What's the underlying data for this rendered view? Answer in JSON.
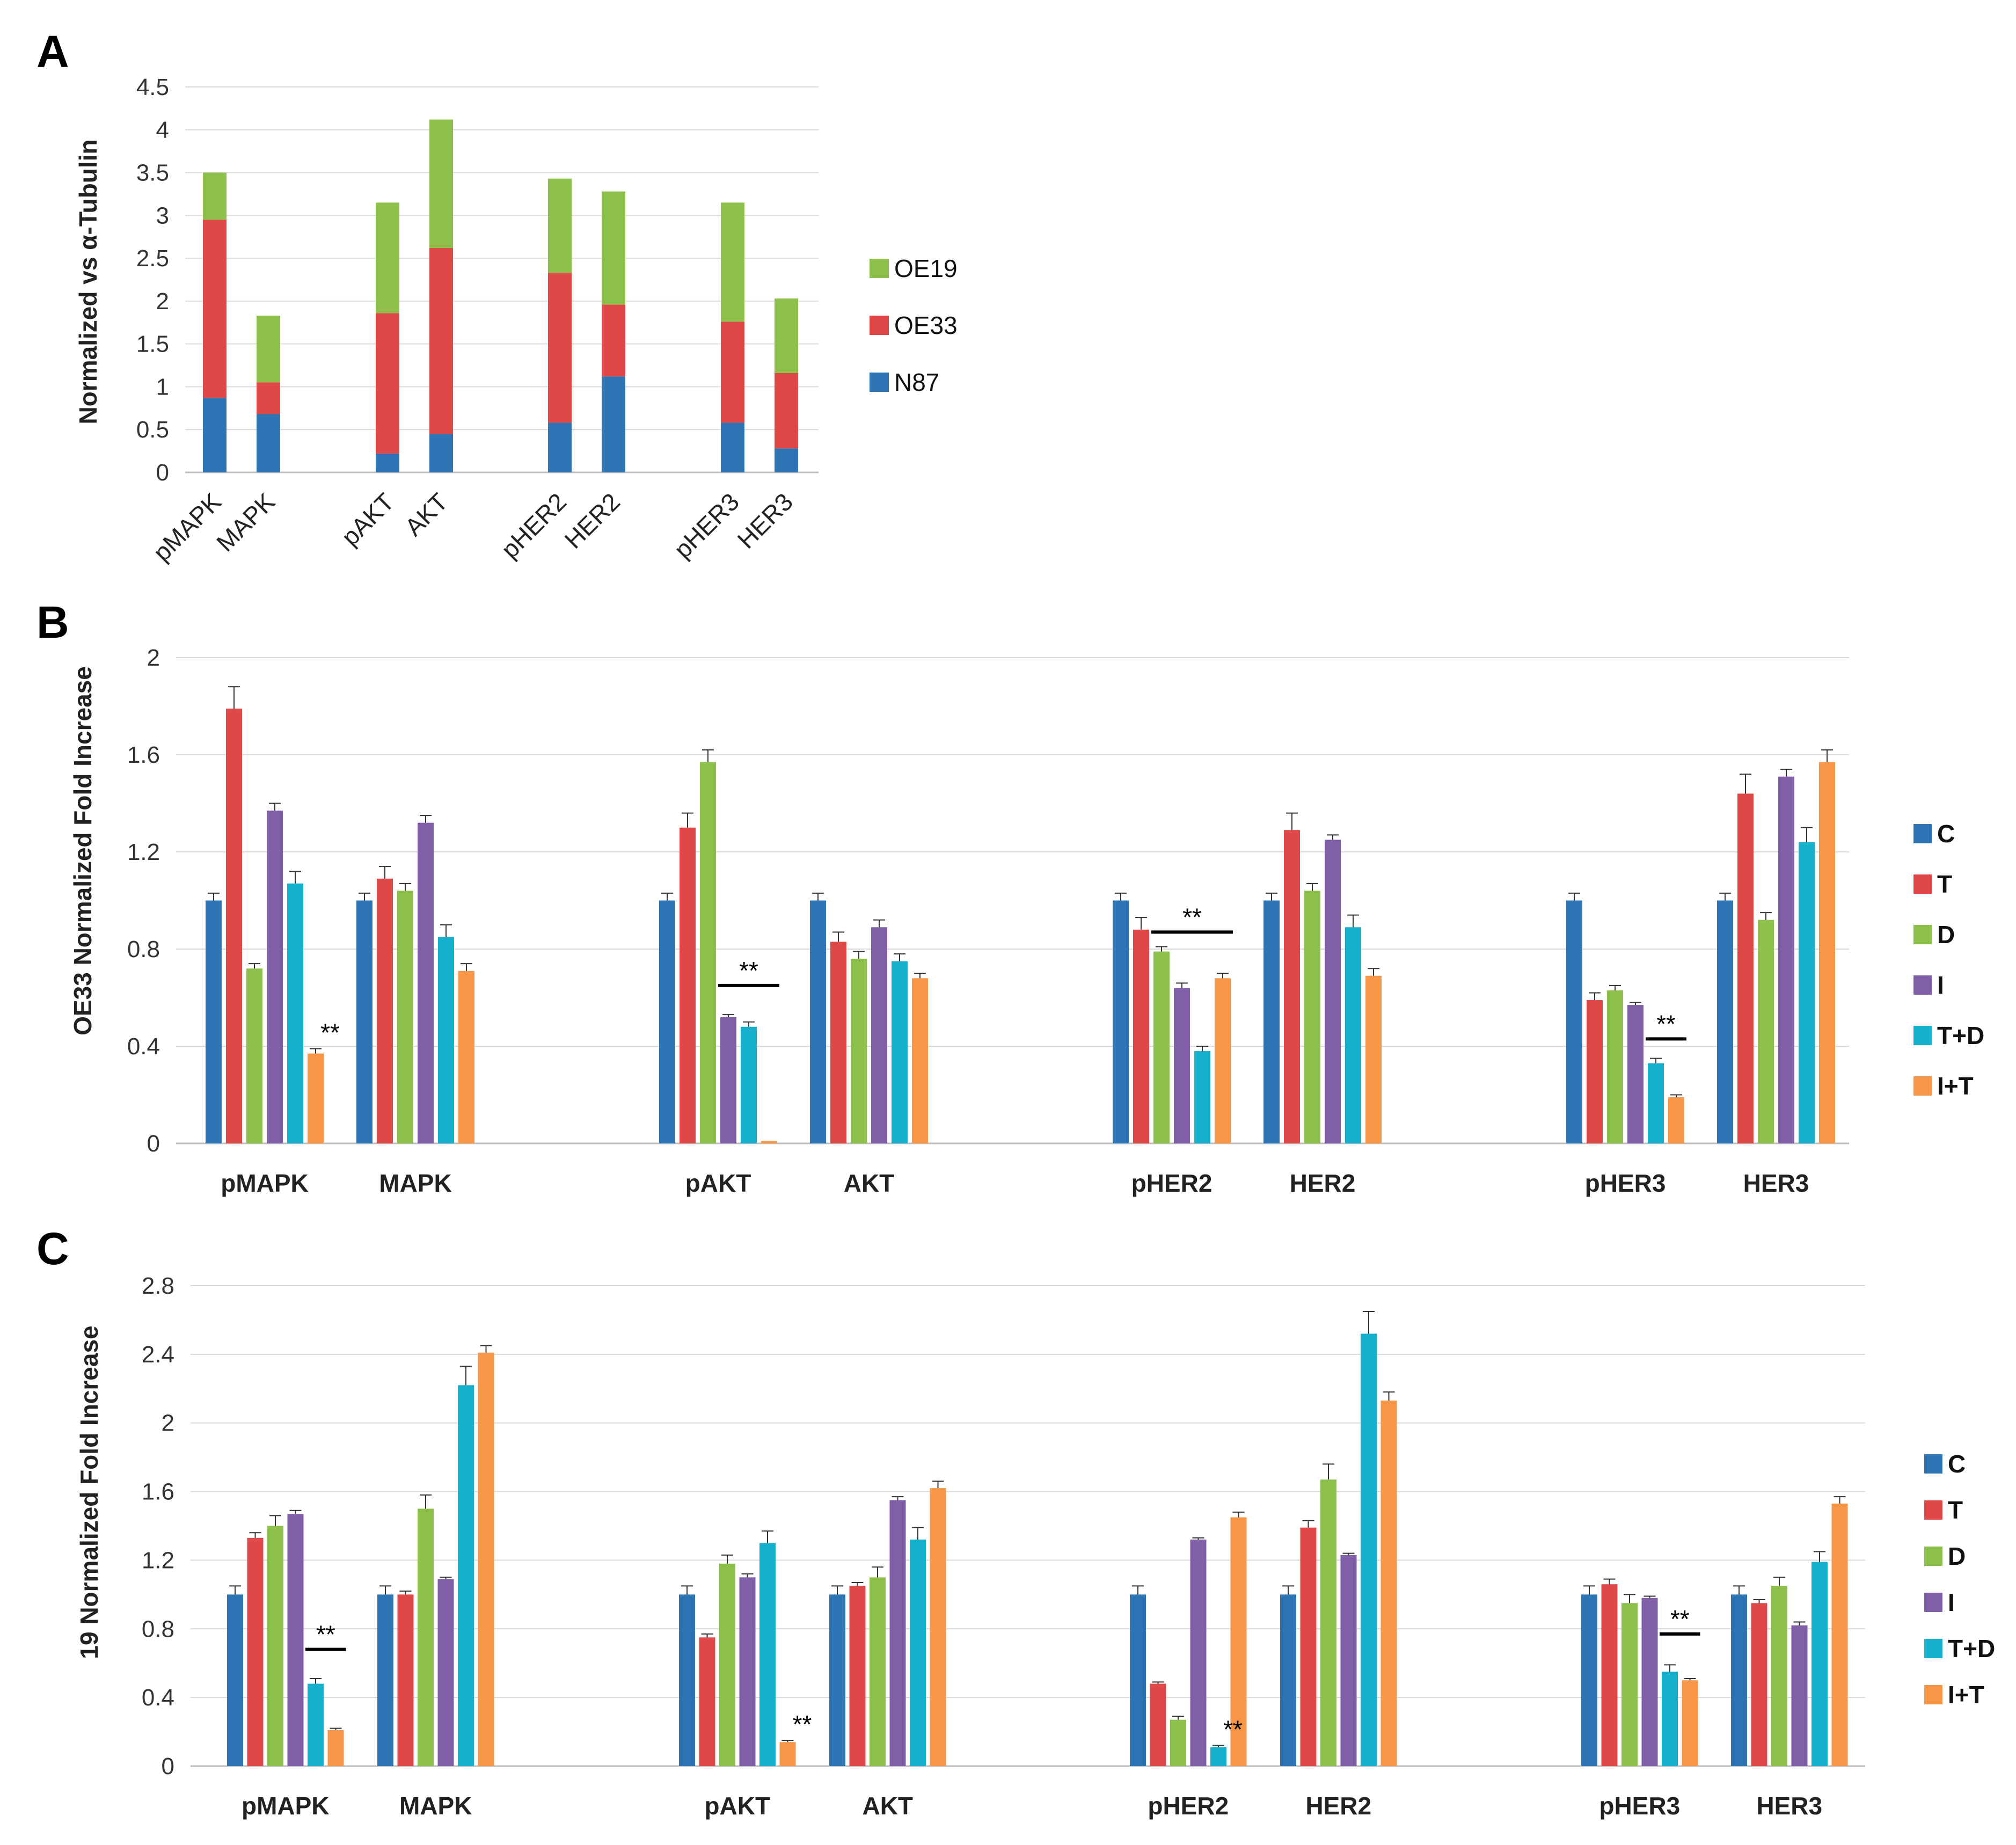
{
  "figure": {
    "colors": {
      "N87": "#2E75B6",
      "OE33": "#E04848",
      "OE19": "#8DC04A",
      "C": "#2E75B6",
      "T": "#E04848",
      "D": "#8DC04A",
      "I": "#7F5FA8",
      "T+D": "#17B0CC",
      "I+T": "#F79646"
    }
  },
  "chart_data": [
    {
      "panel": "A",
      "type": "bar",
      "stacked": true,
      "ylabel": "Normalized vs α-Tubulin",
      "ylim": [
        0,
        4.5
      ],
      "yticks": [
        "0",
        "0.5",
        "1",
        "1.5",
        "2",
        "2.5",
        "3",
        "3.5",
        "4",
        "4.5"
      ],
      "categories": [
        "pMAPK",
        "MAPK",
        "pAKT",
        "AKT",
        "pHER2",
        "HER2",
        "pHER3",
        "HER3"
      ],
      "series": [
        {
          "name": "N87",
          "values": [
            0.87,
            0.68,
            0.22,
            0.45,
            0.58,
            1.12,
            0.58,
            0.28
          ]
        },
        {
          "name": "OE33",
          "values": [
            2.08,
            0.37,
            1.64,
            2.17,
            1.75,
            0.84,
            1.18,
            0.88
          ]
        },
        {
          "name": "OE19",
          "values": [
            0.55,
            0.78,
            1.29,
            1.5,
            1.1,
            1.32,
            1.39,
            0.87
          ]
        }
      ],
      "legend": [
        "OE19",
        "OE33",
        "N87"
      ]
    },
    {
      "panel": "B",
      "type": "bar",
      "ylabel": "OE33 Normalized Fold Increase",
      "ylim": [
        0,
        2
      ],
      "yticks": [
        "0",
        "0.4",
        "0.8",
        "1.2",
        "1.6",
        "2"
      ],
      "categories": [
        "pMAPK",
        "MAPK",
        "pAKT",
        "AKT",
        "pHER2",
        "HER2",
        "pHER3",
        "HER3"
      ],
      "series": [
        {
          "name": "C",
          "values": [
            1.0,
            1.0,
            1.0,
            1.0,
            1.0,
            1.0,
            1.0,
            1.0
          ],
          "errors": [
            0.03,
            0.03,
            0.03,
            0.03,
            0.03,
            0.03,
            0.03,
            0.03
          ]
        },
        {
          "name": "T",
          "values": [
            1.79,
            1.09,
            1.3,
            0.83,
            0.88,
            1.29,
            0.59,
            1.44
          ],
          "errors": [
            0.09,
            0.05,
            0.06,
            0.04,
            0.05,
            0.07,
            0.03,
            0.08
          ]
        },
        {
          "name": "D",
          "values": [
            0.72,
            1.04,
            1.57,
            0.76,
            0.79,
            1.04,
            0.63,
            0.92
          ],
          "errors": [
            0.02,
            0.03,
            0.05,
            0.03,
            0.02,
            0.03,
            0.02,
            0.03
          ]
        },
        {
          "name": "I",
          "values": [
            1.37,
            1.32,
            0.52,
            0.89,
            0.64,
            1.25,
            0.57,
            1.51
          ],
          "errors": [
            0.03,
            0.03,
            0.01,
            0.03,
            0.02,
            0.02,
            0.01,
            0.03
          ]
        },
        {
          "name": "T+D",
          "values": [
            1.07,
            0.85,
            0.48,
            0.75,
            0.38,
            0.89,
            0.33,
            1.24
          ],
          "errors": [
            0.05,
            0.05,
            0.02,
            0.03,
            0.02,
            0.05,
            0.02,
            0.06
          ]
        },
        {
          "name": "I+T",
          "values": [
            0.37,
            0.71,
            0.01,
            0.68,
            0.68,
            0.69,
            0.19,
            1.57
          ],
          "errors": [
            0.02,
            0.03,
            0.0,
            0.02,
            0.02,
            0.03,
            0.01,
            0.05
          ]
        }
      ],
      "annotations": [
        {
          "text": "**",
          "category": "pMAPK",
          "series": "I+T",
          "line": false
        },
        {
          "text": "**",
          "category": "pAKT",
          "from": "I",
          "to": "I+T",
          "y": 0.65,
          "line": true
        },
        {
          "text": "**",
          "category": "pHER2",
          "from": "D",
          "to": "I+T",
          "y": 0.87,
          "line": true
        },
        {
          "text": "**",
          "category": "pHER3",
          "from": "T+D",
          "to": "I+T",
          "y": 0.43,
          "line": true
        }
      ],
      "legend": [
        "C",
        "T",
        "D",
        "I",
        "T+D",
        "I+T"
      ]
    },
    {
      "panel": "C",
      "type": "bar",
      "ylabel": "19 Normalized Fold Increase",
      "ylim": [
        0,
        2.8
      ],
      "yticks": [
        "0",
        "0.4",
        "0.8",
        "1.2",
        "1.6",
        "2",
        "2.4",
        "2.8"
      ],
      "categories": [
        "pMAPK",
        "MAPK",
        "pAKT",
        "AKT",
        "pHER2",
        "HER2",
        "pHER3",
        "HER3"
      ],
      "series": [
        {
          "name": "C",
          "values": [
            1.0,
            1.0,
            1.0,
            1.0,
            1.0,
            1.0,
            1.0,
            1.0
          ],
          "errors": [
            0.05,
            0.05,
            0.05,
            0.05,
            0.05,
            0.05,
            0.05,
            0.05
          ]
        },
        {
          "name": "T",
          "values": [
            1.33,
            1.0,
            0.75,
            1.05,
            0.48,
            1.39,
            1.06,
            0.95
          ],
          "errors": [
            0.03,
            0.02,
            0.02,
            0.02,
            0.01,
            0.04,
            0.03,
            0.02
          ]
        },
        {
          "name": "D",
          "values": [
            1.4,
            1.5,
            1.18,
            1.1,
            0.27,
            1.67,
            0.95,
            1.05
          ],
          "errors": [
            0.06,
            0.08,
            0.05,
            0.06,
            0.02,
            0.09,
            0.05,
            0.05
          ]
        },
        {
          "name": "I",
          "values": [
            1.47,
            1.09,
            1.1,
            1.55,
            1.32,
            1.23,
            0.98,
            0.82
          ],
          "errors": [
            0.02,
            0.01,
            0.02,
            0.02,
            0.01,
            0.01,
            0.01,
            0.02
          ]
        },
        {
          "name": "T+D",
          "values": [
            0.48,
            2.22,
            1.3,
            1.32,
            0.11,
            2.52,
            0.55,
            1.19
          ],
          "errors": [
            0.03,
            0.11,
            0.07,
            0.07,
            0.01,
            0.13,
            0.04,
            0.06
          ]
        },
        {
          "name": "I+T",
          "values": [
            0.21,
            2.41,
            0.14,
            1.62,
            1.45,
            2.13,
            0.5,
            1.53
          ],
          "errors": [
            0.01,
            0.04,
            0.01,
            0.04,
            0.03,
            0.05,
            0.01,
            0.04
          ]
        }
      ],
      "annotations": [
        {
          "text": "**",
          "category": "pMAPK",
          "from": "T+D",
          "to": "I+T",
          "y": 0.68,
          "line": true
        },
        {
          "text": "**",
          "category": "pAKT",
          "series": "I+T",
          "line": false
        },
        {
          "text": "**",
          "category": "pHER2",
          "series": "T+D",
          "line": false
        },
        {
          "text": "**",
          "category": "pHER3",
          "from": "T+D",
          "to": "I+T",
          "y": 0.77,
          "line": true
        }
      ],
      "legend": [
        "C",
        "T",
        "D",
        "I",
        "T+D",
        "I+T"
      ]
    }
  ]
}
